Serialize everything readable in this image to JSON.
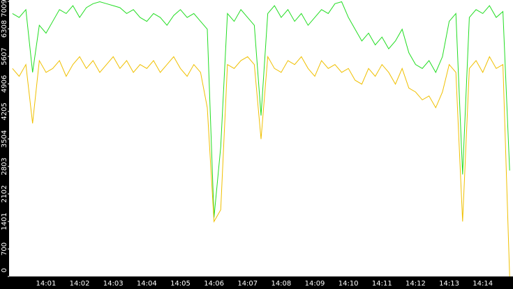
{
  "chart_data": {
    "type": "line",
    "categories": [
      null,
      null,
      null,
      null,
      null,
      "14:01",
      null,
      null,
      null,
      null,
      "14:02",
      null,
      null,
      null,
      null,
      "14:03",
      null,
      null,
      null,
      null,
      "14:04",
      null,
      null,
      null,
      null,
      "14:05",
      null,
      null,
      null,
      null,
      "14:06",
      null,
      null,
      null,
      null,
      "14:07",
      null,
      null,
      null,
      null,
      "14:08",
      null,
      null,
      null,
      null,
      "14:09",
      null,
      null,
      null,
      null,
      "14:10",
      null,
      null,
      null,
      null,
      "14:11",
      null,
      null,
      null,
      null,
      "14:12",
      null,
      null,
      null,
      null,
      "14:13",
      null,
      null,
      null,
      null,
      "14:14",
      null,
      null,
      null,
      null
    ],
    "series": [
      {
        "color": "#22dd22",
        "values": [
          6700,
          6600,
          6800,
          5200,
          6400,
          6200,
          6500,
          6800,
          6700,
          6900,
          6600,
          6850,
          6950,
          7000,
          6950,
          6900,
          6850,
          6700,
          6800,
          6600,
          6500,
          6700,
          6600,
          6400,
          6650,
          6800,
          6600,
          6700,
          6500,
          6300,
          1500,
          3300,
          6700,
          6500,
          6800,
          6600,
          6400,
          4100,
          6700,
          6900,
          6600,
          6800,
          6500,
          6700,
          6400,
          6600,
          6800,
          6700,
          6950,
          7000,
          6600,
          6300,
          6000,
          6200,
          5900,
          6100,
          5800,
          6000,
          6300,
          5700,
          5400,
          5300,
          5500,
          5200,
          5600,
          6500,
          6700,
          2600,
          6600,
          6800,
          6700,
          6900,
          6600,
          6750,
          2700
        ]
      },
      {
        "color": "#f0c000",
        "values": [
          5300,
          5100,
          5400,
          3900,
          5500,
          5200,
          5300,
          5500,
          5100,
          5400,
          5600,
          5300,
          5500,
          5200,
          5400,
          5600,
          5300,
          5500,
          5200,
          5400,
          5300,
          5500,
          5200,
          5400,
          5600,
          5300,
          5100,
          5400,
          5200,
          4300,
          1400,
          1700,
          5400,
          5300,
          5500,
          5600,
          5400,
          3500,
          5600,
          5300,
          5200,
          5500,
          5400,
          5600,
          5300,
          5100,
          5500,
          5300,
          5400,
          5200,
          5300,
          5000,
          4900,
          5300,
          5100,
          5400,
          5200,
          4900,
          5300,
          4800,
          4700,
          4500,
          4600,
          4300,
          4700,
          5400,
          5200,
          1400,
          5300,
          5500,
          5200,
          5600,
          5300,
          5400,
          0
        ]
      }
    ],
    "ylim": [
      0,
      7009
    ],
    "yticks": [
      0,
      700,
      1401,
      2102,
      2803,
      3504,
      4205,
      4906,
      5607,
      6308,
      7009
    ]
  }
}
